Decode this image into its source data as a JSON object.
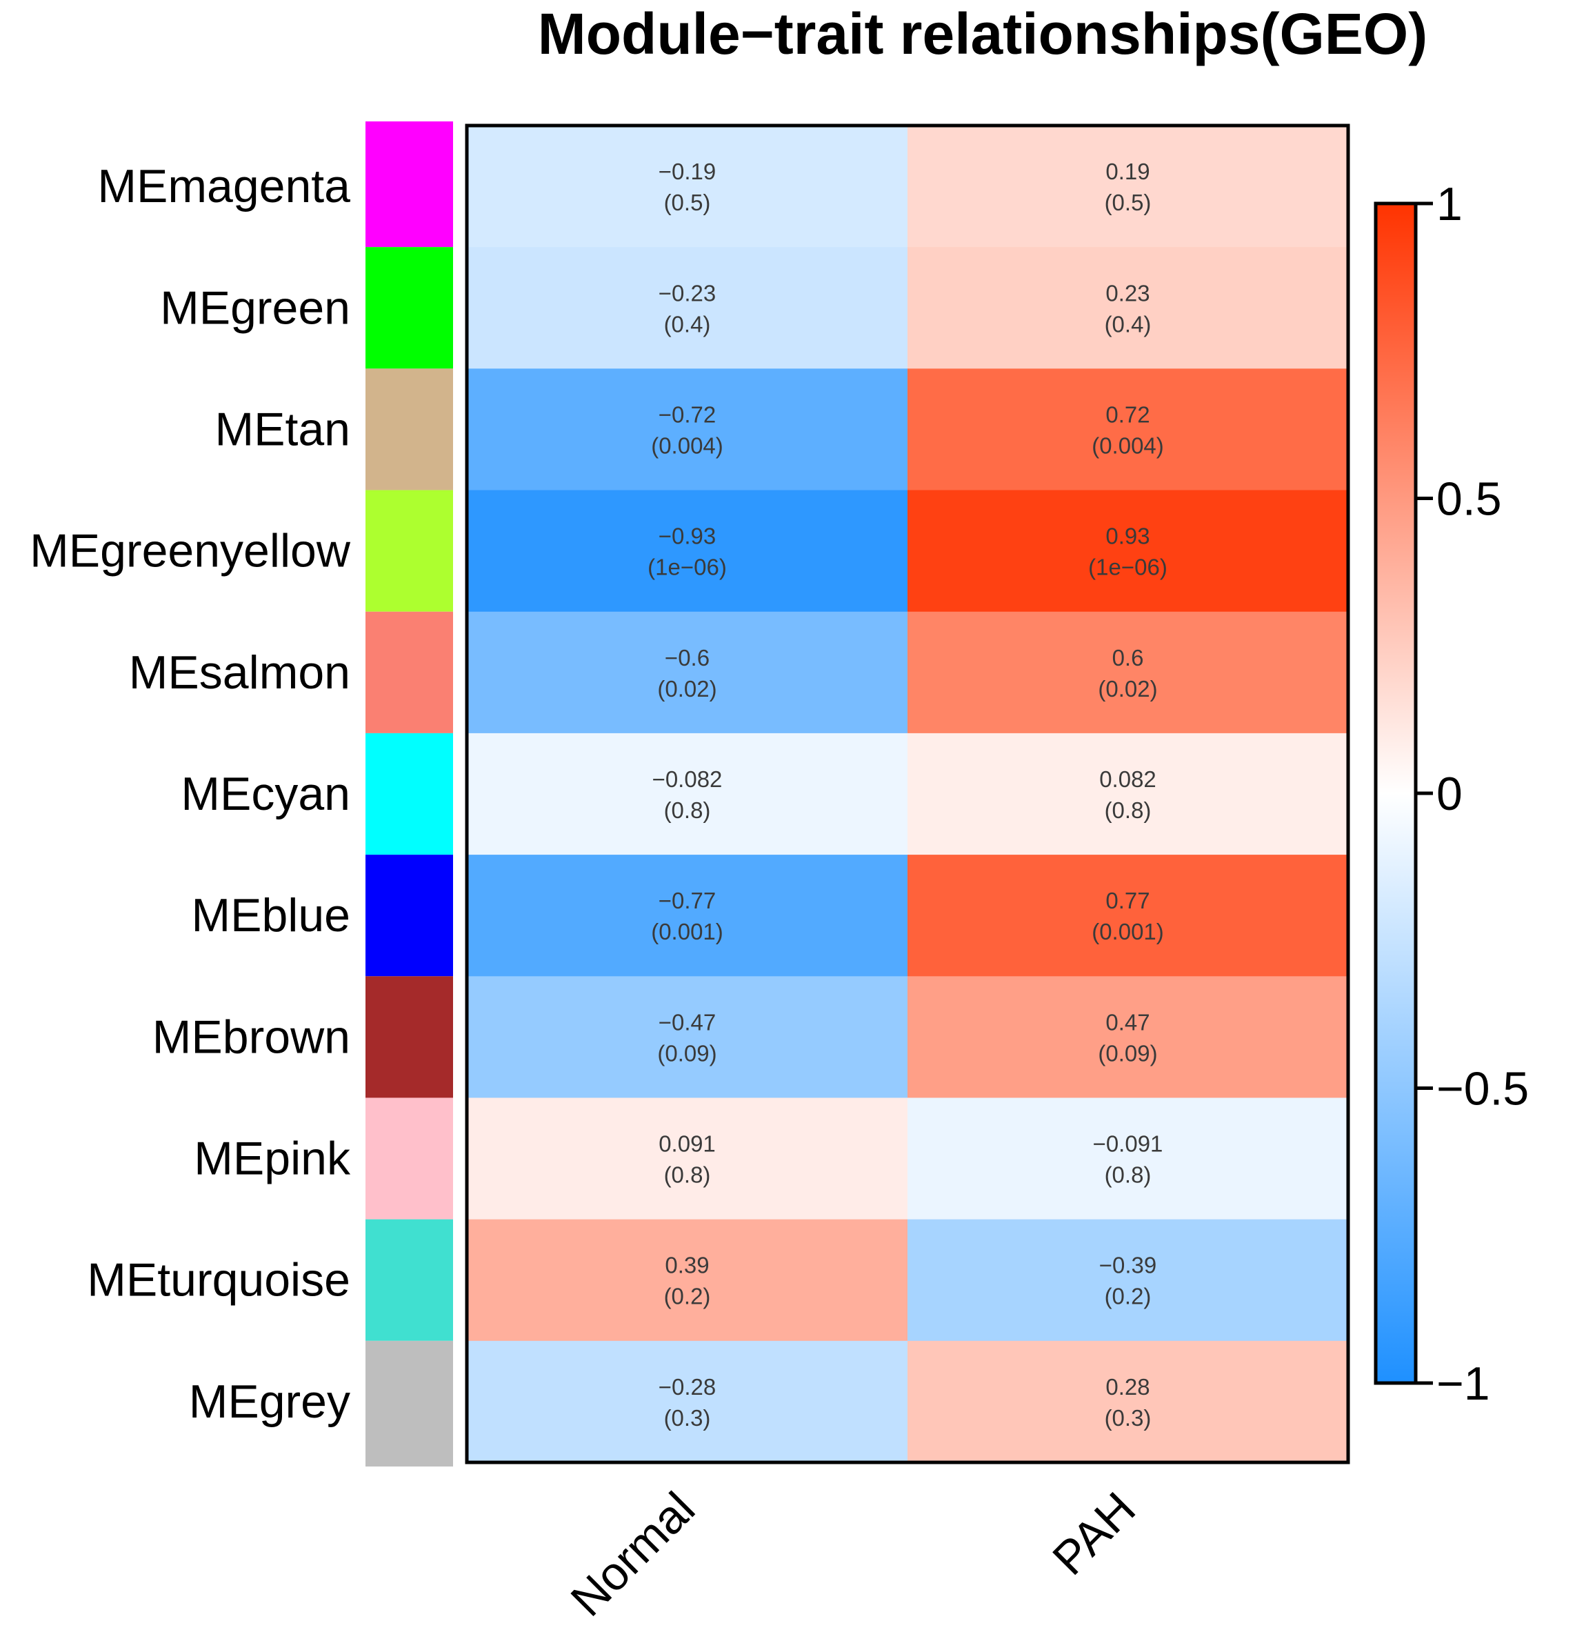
{
  "chart_data": {
    "type": "heatmap",
    "title": "Module−trait relationships(GEO)",
    "columns": [
      "Normal",
      "PAH"
    ],
    "rows": [
      {
        "module": "MEmagenta",
        "color": "#FF00FF",
        "values": [
          -0.19,
          0.19
        ],
        "labels": [
          "−0.19",
          "0.19"
        ],
        "pvalues": [
          "(0.5)",
          "(0.5)"
        ]
      },
      {
        "module": "MEgreen",
        "color": "#00FF00",
        "values": [
          -0.23,
          0.23
        ],
        "labels": [
          "−0.23",
          "0.23"
        ],
        "pvalues": [
          "(0.4)",
          "(0.4)"
        ]
      },
      {
        "module": "MEtan",
        "color": "#D2B48C",
        "values": [
          -0.72,
          0.72
        ],
        "labels": [
          "−0.72",
          "0.72"
        ],
        "pvalues": [
          "(0.004)",
          "(0.004)"
        ]
      },
      {
        "module": "MEgreenyellow",
        "color": "#ADFF2F",
        "values": [
          -0.93,
          0.93
        ],
        "labels": [
          "−0.93",
          "0.93"
        ],
        "pvalues": [
          "(1e−06)",
          "(1e−06)"
        ]
      },
      {
        "module": "MEsalmon",
        "color": "#FA8072",
        "values": [
          -0.6,
          0.6
        ],
        "labels": [
          "−0.6",
          "0.6"
        ],
        "pvalues": [
          "(0.02)",
          "(0.02)"
        ]
      },
      {
        "module": "MEcyan",
        "color": "#00FFFF",
        "values": [
          -0.082,
          0.082
        ],
        "labels": [
          "−0.082",
          "0.082"
        ],
        "pvalues": [
          "(0.8)",
          "(0.8)"
        ]
      },
      {
        "module": "MEblue",
        "color": "#0000FF",
        "values": [
          -0.77,
          0.77
        ],
        "labels": [
          "−0.77",
          "0.77"
        ],
        "pvalues": [
          "(0.001)",
          "(0.001)"
        ]
      },
      {
        "module": "MEbrown",
        "color": "#A52A2A",
        "values": [
          -0.47,
          0.47
        ],
        "labels": [
          "−0.47",
          "0.47"
        ],
        "pvalues": [
          "(0.09)",
          "(0.09)"
        ]
      },
      {
        "module": "MEpink",
        "color": "#FFC0CB",
        "values": [
          0.091,
          -0.091
        ],
        "labels": [
          "0.091",
          "−0.091"
        ],
        "pvalues": [
          "(0.8)",
          "(0.8)"
        ]
      },
      {
        "module": "MEturquoise",
        "color": "#40E0D0",
        "values": [
          0.39,
          -0.39
        ],
        "labels": [
          "0.39",
          "−0.39"
        ],
        "pvalues": [
          "(0.2)",
          "(0.2)"
        ]
      },
      {
        "module": "MEgrey",
        "color": "#BEBEBE",
        "values": [
          -0.28,
          0.28
        ],
        "labels": [
          "−0.28",
          "0.28"
        ],
        "pvalues": [
          "(0.3)",
          "(0.3)"
        ]
      }
    ],
    "colorbar": {
      "range": [
        -1,
        1
      ],
      "ticks": [
        1,
        0.5,
        0,
        -0.5,
        -1
      ],
      "tick_labels": [
        "1",
        "0.5",
        "0",
        "−0.5",
        "−1"
      ],
      "low_color": "#1E90FF",
      "mid_color": "#FFFFFF",
      "high_color": "#FF3300"
    },
    "legend_placement": "right"
  }
}
